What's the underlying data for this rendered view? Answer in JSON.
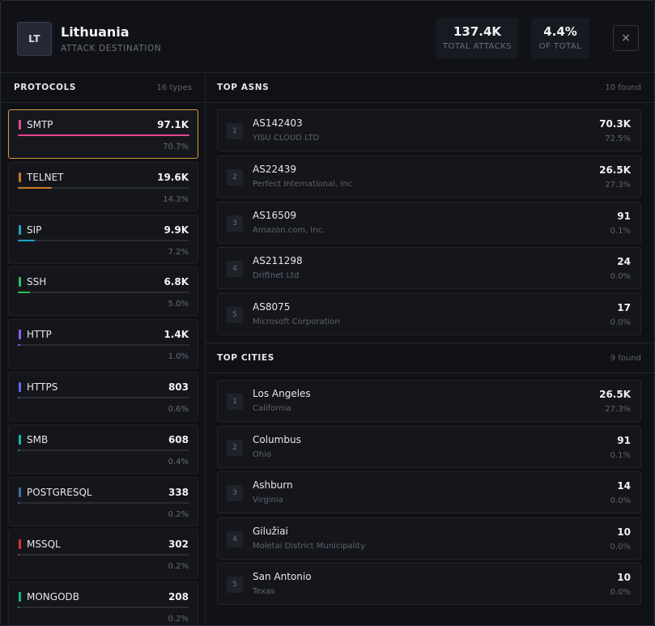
{
  "header": {
    "flag_code": "LT",
    "country": "Lithuania",
    "subtitle": "ATTACK DESTINATION",
    "total_attacks_value": "137.4K",
    "total_attacks_label": "TOTAL ATTACKS",
    "share_value": "4.4%",
    "share_label": "OF TOTAL",
    "close_glyph": "×"
  },
  "protocols": {
    "title": "PROTOCOLS",
    "count": "16 types",
    "items": [
      {
        "name": "SMTP",
        "value": "97.1K",
        "pct": "70.7%",
        "fill": 1.0,
        "color": "#e5478f",
        "active": true
      },
      {
        "name": "TELNET",
        "value": "19.6K",
        "pct": "14.3%",
        "fill": 0.2,
        "color": "#c77a28",
        "active": false
      },
      {
        "name": "SIP",
        "value": "9.9K",
        "pct": "7.2%",
        "fill": 0.1,
        "color": "#1ea3c6",
        "active": false
      },
      {
        "name": "SSH",
        "value": "6.8K",
        "pct": "5.0%",
        "fill": 0.07,
        "color": "#2fbf5a",
        "active": false
      },
      {
        "name": "HTTP",
        "value": "1.4K",
        "pct": "1.0%",
        "fill": 0.014,
        "color": "#8b5cf6",
        "active": false
      },
      {
        "name": "HTTPS",
        "value": "803",
        "pct": "0.6%",
        "fill": 0.008,
        "color": "#6366f1",
        "active": false
      },
      {
        "name": "SMB",
        "value": "608",
        "pct": "0.4%",
        "fill": 0.006,
        "color": "#14b8a6",
        "active": false
      },
      {
        "name": "POSTGRESQL",
        "value": "338",
        "pct": "0.2%",
        "fill": 0.003,
        "color": "#3b6ea5",
        "active": false
      },
      {
        "name": "MSSQL",
        "value": "302",
        "pct": "0.2%",
        "fill": 0.003,
        "color": "#dc2f2f",
        "active": false
      },
      {
        "name": "MONGODB",
        "value": "208",
        "pct": "0.2%",
        "fill": 0.002,
        "color": "#10b981",
        "active": false
      }
    ]
  },
  "asns": {
    "title": "TOP ASNS",
    "count": "10 found",
    "items": [
      {
        "rank": "1",
        "asn": "AS142403",
        "org": "YISU CLOUD LTD",
        "value": "70.3K",
        "pct": "72.5%"
      },
      {
        "rank": "2",
        "asn": "AS22439",
        "org": "Perfect International, Inc",
        "value": "26.5K",
        "pct": "27.3%"
      },
      {
        "rank": "3",
        "asn": "AS16509",
        "org": "Amazon.com, Inc.",
        "value": "91",
        "pct": "0.1%"
      },
      {
        "rank": "4",
        "asn": "AS211298",
        "org": "Driftnet Ltd",
        "value": "24",
        "pct": "0.0%"
      },
      {
        "rank": "5",
        "asn": "AS8075",
        "org": "Microsoft Corporation",
        "value": "17",
        "pct": "0.0%"
      }
    ]
  },
  "cities": {
    "title": "TOP CITIES",
    "count": "9 found",
    "items": [
      {
        "rank": "1",
        "city": "Los Angeles",
        "region": "California",
        "value": "26.5K",
        "pct": "27.3%"
      },
      {
        "rank": "2",
        "city": "Columbus",
        "region": "Ohio",
        "value": "91",
        "pct": "0.1%"
      },
      {
        "rank": "3",
        "city": "Ashburn",
        "region": "Virginia",
        "value": "14",
        "pct": "0.0%"
      },
      {
        "rank": "4",
        "city": "Gilužiai",
        "region": "Molėtai District Municipality",
        "value": "10",
        "pct": "0.0%"
      },
      {
        "rank": "5",
        "city": "San Antonio",
        "region": "Texas",
        "value": "10",
        "pct": "0.0%"
      }
    ]
  }
}
